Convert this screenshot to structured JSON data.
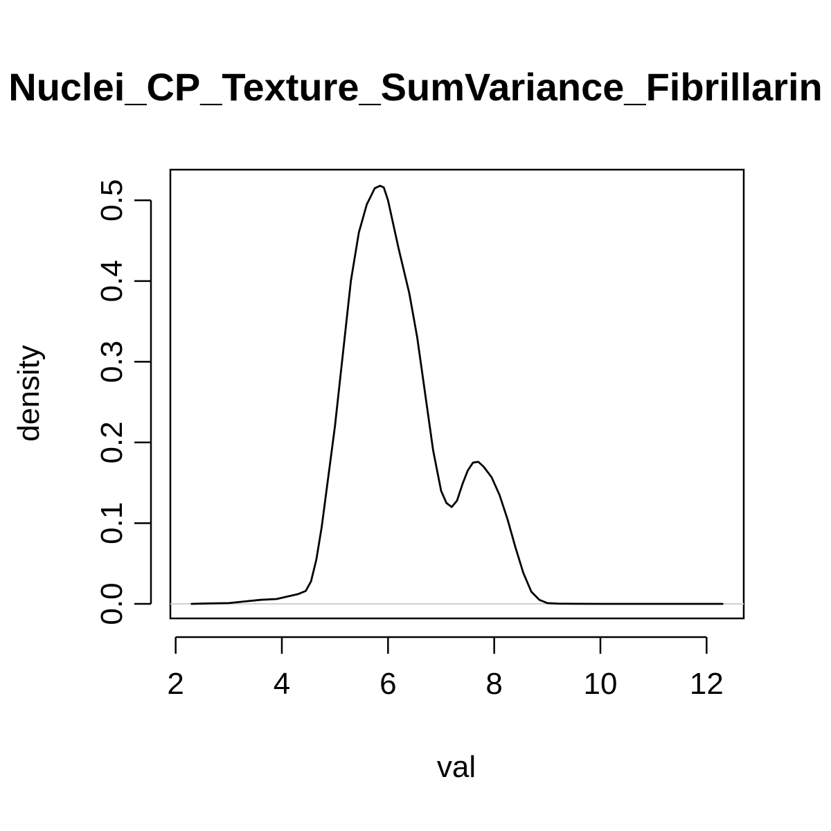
{
  "chart_data": {
    "type": "line",
    "title": "Nuclei_CP_Texture_SumVariance_Fibrillarin",
    "xlabel": "val",
    "ylabel": "density",
    "xlim": [
      1.9,
      12.7
    ],
    "ylim": [
      -0.018,
      0.538
    ],
    "x_ticks": [
      2,
      4,
      6,
      8,
      10,
      12
    ],
    "x_tick_labels": [
      "2",
      "4",
      "6",
      "8",
      "10",
      "12"
    ],
    "y_ticks": [
      0.0,
      0.1,
      0.2,
      0.3,
      0.4,
      0.5
    ],
    "y_tick_labels": [
      "0.0",
      "0.1",
      "0.2",
      "0.3",
      "0.4",
      "0.5"
    ],
    "reference_line": {
      "y": 0,
      "color": "#d0d0d0"
    },
    "grid": false,
    "legend": "none",
    "series": [
      {
        "color": "#000000",
        "x": [
          2.3,
          2.6,
          3.0,
          3.3,
          3.6,
          3.9,
          4.1,
          4.3,
          4.45,
          4.55,
          4.65,
          4.75,
          4.85,
          5.0,
          5.15,
          5.3,
          5.45,
          5.6,
          5.75,
          5.85,
          5.92,
          6.0,
          6.1,
          6.2,
          6.4,
          6.55,
          6.7,
          6.85,
          7.0,
          7.1,
          7.2,
          7.3,
          7.4,
          7.5,
          7.6,
          7.7,
          7.8,
          7.95,
          8.1,
          8.25,
          8.4,
          8.55,
          8.7,
          8.85,
          9.0,
          9.2,
          9.5,
          10.0,
          10.5,
          11.0,
          11.5,
          12.0,
          12.3
        ],
        "y": [
          0.0,
          0.0005,
          0.001,
          0.003,
          0.005,
          0.006,
          0.009,
          0.012,
          0.016,
          0.028,
          0.055,
          0.095,
          0.145,
          0.22,
          0.31,
          0.4,
          0.46,
          0.495,
          0.515,
          0.518,
          0.516,
          0.5,
          0.47,
          0.44,
          0.385,
          0.33,
          0.26,
          0.19,
          0.14,
          0.125,
          0.12,
          0.128,
          0.148,
          0.165,
          0.175,
          0.176,
          0.17,
          0.157,
          0.135,
          0.105,
          0.07,
          0.038,
          0.015,
          0.005,
          0.001,
          0.0003,
          0.0001,
          0.0,
          0.0,
          0.0,
          0.0,
          0.0,
          0.0
        ]
      }
    ]
  }
}
